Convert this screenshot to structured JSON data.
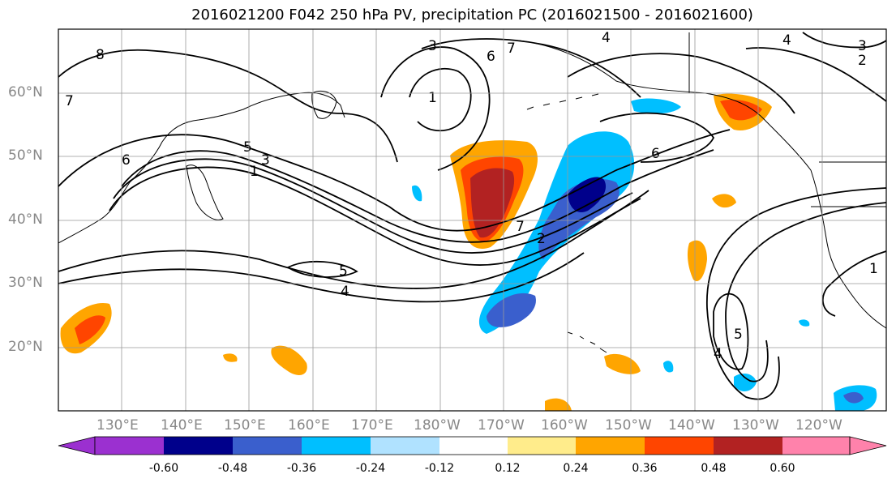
{
  "title": "2016021200 F042 250 hPa PV, precipitation PC (2016021500 - 2016021600)",
  "lat_labels": [
    "60°N",
    "50°N",
    "40°N",
    "30°N",
    "20°N"
  ],
  "lon_labels": [
    "130°E",
    "140°E",
    "150°E",
    "160°E",
    "170°E",
    "180°W",
    "170°W",
    "160°W",
    "150°W",
    "140°W",
    "130°W",
    "120°W"
  ],
  "colorbar": {
    "tick_labels": [
      "-0.60",
      "-0.48",
      "-0.36",
      "-0.24",
      "-0.12",
      "0.12",
      "0.24",
      "0.36",
      "0.48",
      "0.60"
    ],
    "colors": [
      "#9b30d0",
      "#00008b",
      "#3a5fcd",
      "#00bfff",
      "#b0e2ff",
      "#ffffff",
      "#ffec8b",
      "#ffa500",
      "#ff4500",
      "#b22222",
      "#ff82ab"
    ]
  },
  "contour_labels": [
    "8",
    "7",
    "6",
    "5",
    "3",
    "1",
    "4",
    "7",
    "4",
    "2",
    "3",
    "6",
    "5",
    "4",
    "7",
    "1",
    "2",
    "6",
    "1",
    "5",
    "4",
    "3"
  ],
  "colors": {
    "frame": "#000000",
    "grid": "#999999",
    "axis_text": "#888888"
  }
}
